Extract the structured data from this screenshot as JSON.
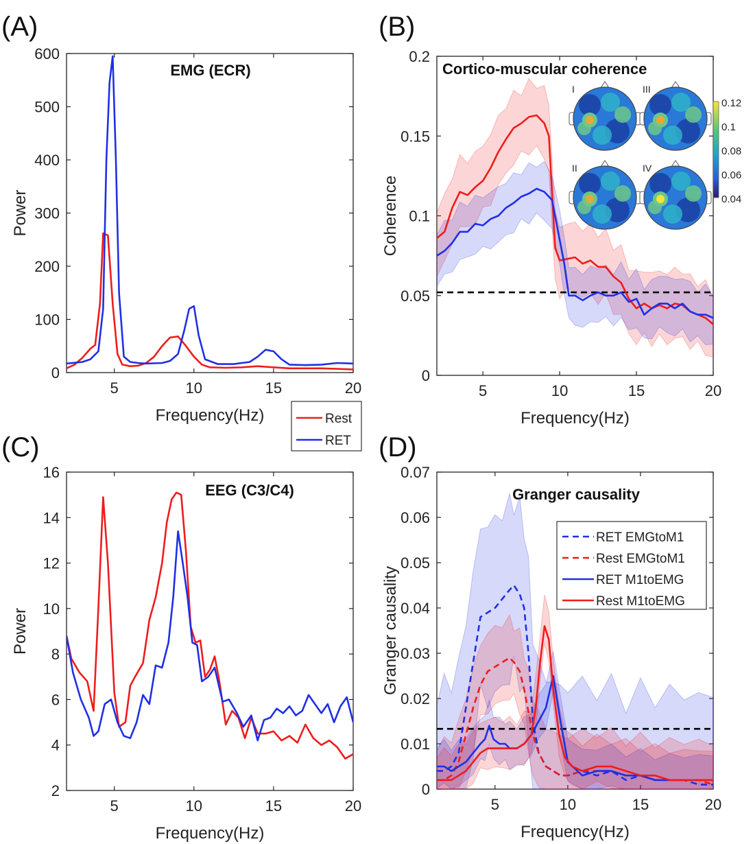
{
  "chart_data": [
    {
      "panel": "A",
      "panel_label": "(A)",
      "type": "line",
      "title": "EMG (ECR)",
      "xlabel": "Frequency(Hz)",
      "ylabel": "Power",
      "xlim": [
        2,
        20
      ],
      "ylim": [
        0,
        600
      ],
      "xticks": [
        5,
        10,
        15,
        20
      ],
      "yticks": [
        0,
        100,
        200,
        300,
        400,
        500,
        600
      ],
      "grid": false,
      "legend": {
        "placement": "below-right",
        "entries": [
          "Rest",
          "RET"
        ]
      },
      "series": [
        {
          "name": "Rest",
          "color": "#ee1c1c",
          "x": [
            2,
            2.5,
            3,
            3.5,
            3.8,
            4.1,
            4.3,
            4.6,
            4.9,
            5.2,
            5.5,
            6,
            6.5,
            7,
            7.5,
            8,
            8.5,
            9,
            9.5,
            10,
            10.5,
            11,
            12,
            13,
            14,
            15,
            16,
            17,
            18,
            19,
            20
          ],
          "y": [
            8,
            15,
            28,
            45,
            52,
            130,
            262,
            258,
            130,
            35,
            15,
            12,
            13,
            18,
            30,
            50,
            66,
            68,
            50,
            30,
            15,
            10,
            9,
            10,
            12,
            10,
            8,
            8,
            8,
            7,
            6
          ]
        },
        {
          "name": "RET",
          "color": "#1f2fe5",
          "x": [
            2,
            3,
            3.5,
            4,
            4.3,
            4.5,
            4.7,
            4.9,
            5.1,
            5.3,
            5.6,
            6,
            6.5,
            7,
            8,
            8.5,
            9,
            9.4,
            9.7,
            10,
            10.3,
            10.7,
            11.5,
            12.5,
            13.5,
            14,
            14.5,
            15,
            15.5,
            16,
            17,
            18,
            19,
            20
          ],
          "y": [
            17,
            20,
            25,
            40,
            120,
            400,
            545,
            595,
            400,
            150,
            30,
            20,
            18,
            17,
            18,
            22,
            35,
            80,
            120,
            125,
            70,
            25,
            16,
            16,
            20,
            30,
            43,
            40,
            25,
            15,
            14,
            15,
            18,
            17
          ]
        }
      ]
    },
    {
      "panel": "B",
      "panel_label": "(B)",
      "type": "line",
      "title": "Cortico-muscular coherence",
      "xlabel": "Frequency(Hz)",
      "ylabel": "Coherence",
      "xlim": [
        2,
        20
      ],
      "ylim": [
        0,
        0.2
      ],
      "xticks": [
        5,
        10,
        15,
        20
      ],
      "yticks": [
        0,
        0.05,
        0.1,
        0.15,
        0.2
      ],
      "threshold": 0.052,
      "grid": false,
      "series": [
        {
          "name": "Rest",
          "color": "#ee1c1c",
          "x": [
            2,
            2.5,
            3,
            3.5,
            4,
            4.5,
            5,
            5.5,
            6,
            6.5,
            7,
            7.5,
            8,
            8.5,
            9,
            9.3,
            9.7,
            10,
            10.5,
            11,
            11.5,
            12,
            12.5,
            13,
            13.5,
            14,
            14.5,
            15,
            15.5,
            16,
            16.5,
            17,
            17.5,
            18,
            18.5,
            19,
            19.5,
            20
          ],
          "y": [
            0.086,
            0.09,
            0.105,
            0.115,
            0.113,
            0.118,
            0.122,
            0.13,
            0.14,
            0.148,
            0.155,
            0.158,
            0.162,
            0.163,
            0.158,
            0.15,
            0.08,
            0.072,
            0.073,
            0.074,
            0.07,
            0.072,
            0.068,
            0.068,
            0.062,
            0.058,
            0.048,
            0.042,
            0.045,
            0.042,
            0.044,
            0.042,
            0.045,
            0.044,
            0.04,
            0.038,
            0.036,
            0.032
          ],
          "band": 0.02
        },
        {
          "name": "RET",
          "color": "#1f2fe5",
          "x": [
            2,
            2.5,
            3,
            3.5,
            4,
            4.5,
            5,
            5.5,
            6,
            6.5,
            7,
            7.5,
            8,
            8.5,
            9,
            9.5,
            10,
            10.3,
            10.6,
            11,
            11.5,
            12,
            12.5,
            13,
            13.5,
            14,
            14.5,
            15,
            15.5,
            16,
            16.5,
            17,
            17.5,
            18,
            18.5,
            19,
            19.5,
            20
          ],
          "y": [
            0.075,
            0.078,
            0.083,
            0.09,
            0.09,
            0.095,
            0.094,
            0.098,
            0.1,
            0.105,
            0.108,
            0.112,
            0.114,
            0.117,
            0.115,
            0.11,
            0.085,
            0.07,
            0.05,
            0.05,
            0.047,
            0.05,
            0.052,
            0.05,
            0.05,
            0.052,
            0.046,
            0.048,
            0.038,
            0.042,
            0.045,
            0.045,
            0.042,
            0.045,
            0.04,
            0.038,
            0.038,
            0.036
          ],
          "band": 0.016
        }
      ],
      "inset": {
        "maps": [
          "I",
          "III",
          "II",
          "IV"
        ],
        "colorbar_ticks": [
          "0.12",
          "0.1",
          "0.08",
          "0.06",
          "0.04"
        ]
      }
    },
    {
      "panel": "C",
      "panel_label": "(C)",
      "type": "line",
      "title": "EEG (C3/C4)",
      "xlabel": "Frequency(Hz)",
      "ylabel": "Power",
      "xlim": [
        2,
        20
      ],
      "ylim": [
        2,
        16
      ],
      "xticks": [
        5,
        10,
        15,
        20
      ],
      "yticks": [
        2,
        4,
        6,
        8,
        10,
        12,
        14,
        16
      ],
      "grid": false,
      "series": [
        {
          "name": "Rest",
          "color": "#ee1c1c",
          "x": [
            2,
            2.3,
            2.8,
            3.3,
            3.7,
            4.0,
            4.3,
            4.6,
            5.0,
            5.3,
            5.7,
            6.0,
            6.3,
            6.8,
            7.2,
            7.6,
            8.0,
            8.3,
            8.6,
            8.9,
            9.2,
            9.5,
            9.8,
            10.1,
            10.4,
            10.7,
            11.0,
            11.3,
            11.6,
            12.0,
            12.4,
            12.8,
            13.2,
            13.6,
            14.0,
            14.5,
            15.0,
            15.5,
            16.0,
            16.5,
            17.0,
            17.5,
            18.0,
            18.5,
            19.0,
            19.5,
            20.0
          ],
          "y": [
            8.8,
            7.8,
            7.2,
            6.8,
            5.5,
            10,
            14.9,
            12,
            6.3,
            4.8,
            5,
            6.6,
            7,
            7.6,
            9.5,
            10.5,
            12,
            13.8,
            14.8,
            15.1,
            15,
            12.5,
            9.2,
            8.5,
            8.6,
            7,
            7.3,
            7.9,
            6.8,
            4.9,
            5.5,
            5.2,
            4.3,
            5.2,
            4.5,
            4.5,
            4.6,
            4.2,
            4.4,
            4.1,
            4.9,
            4.3,
            4,
            4.2,
            3.9,
            3.4,
            3.6
          ]
        },
        {
          "name": "RET",
          "color": "#1f2fe5",
          "x": [
            2,
            2.4,
            2.9,
            3.4,
            3.7,
            4.0,
            4.4,
            4.8,
            5.2,
            5.6,
            6.0,
            6.4,
            6.8,
            7.2,
            7.6,
            8.0,
            8.4,
            8.7,
            9.0,
            9.3,
            9.6,
            9.9,
            10.2,
            10.5,
            10.9,
            11.3,
            11.8,
            12.2,
            12.7,
            13.1,
            13.6,
            14.0,
            14.4,
            14.8,
            15.2,
            15.6,
            16.0,
            16.4,
            16.8,
            17.2,
            17.6,
            18.0,
            18.4,
            18.8,
            19.2,
            19.6,
            20.0
          ],
          "y": [
            8.8,
            7.2,
            6,
            5.2,
            4.4,
            4.6,
            5.8,
            6,
            5,
            4.4,
            4.3,
            5,
            6.2,
            5.8,
            7.5,
            7.4,
            8.5,
            10.5,
            13.4,
            12,
            10.5,
            8.5,
            8.4,
            6.8,
            7,
            7.4,
            5.9,
            6,
            5.4,
            4.8,
            5.3,
            4.2,
            5.1,
            5.2,
            5.6,
            5.4,
            5.7,
            5.3,
            5.5,
            6.2,
            5.8,
            5.4,
            5.8,
            5.0,
            5.7,
            6.1,
            5.0
          ]
        }
      ]
    },
    {
      "panel": "D",
      "panel_label": "(D)",
      "type": "line",
      "title": "Granger causality",
      "xlabel": "Frequency(Hz)",
      "ylabel": "Granger causality",
      "xlim": [
        1,
        20
      ],
      "ylim": [
        0,
        0.07
      ],
      "xticks": [
        5,
        10,
        15,
        20
      ],
      "yticks": [
        0,
        0.01,
        0.02,
        0.03,
        0.04,
        0.05,
        0.06,
        0.07
      ],
      "threshold": 0.0133,
      "grid": false,
      "legend": {
        "placement": "top-right",
        "entries": [
          "RET EMGtoM1",
          "Rest EMGtoM1",
          "RET M1toEMG",
          "Rest M1toEMG"
        ]
      },
      "series": [
        {
          "name": "RET EMGtoM1",
          "color": "#1f2fe5",
          "dash": true,
          "x": [
            1,
            1.5,
            2,
            2.5,
            3,
            3.5,
            4,
            4.5,
            5,
            5.5,
            6,
            6.3,
            6.7,
            7,
            7.3,
            7.6,
            8,
            8.5,
            9,
            9.5,
            10,
            11,
            12,
            13,
            14,
            15,
            16,
            17,
            18,
            19,
            20
          ],
          "y": [
            0.004,
            0.004,
            0.005,
            0.008,
            0.018,
            0.028,
            0.038,
            0.039,
            0.04,
            0.042,
            0.044,
            0.045,
            0.043,
            0.04,
            0.03,
            0.015,
            0.008,
            0.005,
            0.004,
            0.003,
            0.003,
            0.004,
            0.003,
            0.004,
            0.002,
            0.003,
            0.002,
            0.002,
            0.002,
            0.001,
            0.001
          ],
          "band_up": 0.018,
          "band_lo": 0.018
        },
        {
          "name": "Rest EMGtoM1",
          "color": "#ee1c1c",
          "dash": true,
          "x": [
            1,
            1.5,
            2,
            2.5,
            3,
            3.5,
            4,
            4.5,
            5,
            5.5,
            6,
            6.3,
            6.7,
            7,
            7.3,
            7.6,
            8,
            8.5,
            9,
            9.5,
            10,
            11,
            12,
            13,
            14,
            15,
            16,
            17,
            18,
            19,
            20
          ],
          "y": [
            0.002,
            0.002,
            0.003,
            0.006,
            0.012,
            0.018,
            0.023,
            0.026,
            0.027,
            0.028,
            0.029,
            0.028,
            0.026,
            0.022,
            0.017,
            0.012,
            0.008,
            0.005,
            0.004,
            0.003,
            0.003,
            0.004,
            0.004,
            0.004,
            0.003,
            0.003,
            0.002,
            0.002,
            0.002,
            0.002,
            0.001
          ],
          "band_up": 0.008,
          "band_lo": 0.008
        },
        {
          "name": "RET M1toEMG",
          "color": "#1f2fe5",
          "dash": false,
          "x": [
            1,
            1.5,
            2,
            2.5,
            3,
            3.5,
            4,
            4.3,
            4.6,
            4.9,
            5.3,
            5.7,
            6,
            6.5,
            7,
            7.5,
            8,
            8.5,
            9,
            9.5,
            10,
            11,
            12,
            13,
            14,
            15,
            16,
            17,
            18,
            19,
            20
          ],
          "y": [
            0.005,
            0.005,
            0.004,
            0.005,
            0.006,
            0.008,
            0.01,
            0.011,
            0.014,
            0.011,
            0.01,
            0.01,
            0.009,
            0.009,
            0.01,
            0.012,
            0.015,
            0.018,
            0.025,
            0.015,
            0.006,
            0.003,
            0.004,
            0.004,
            0.003,
            0.003,
            0.002,
            0.002,
            0.002,
            0.002,
            0.002
          ],
          "band_up": 0.005,
          "band_lo": 0.004
        },
        {
          "name": "Rest M1toEMG",
          "color": "#ee1c1c",
          "dash": false,
          "x": [
            1,
            1.5,
            2,
            2.5,
            3,
            3.5,
            4,
            4.5,
            5,
            5.5,
            6,
            6.5,
            7,
            7.5,
            7.8,
            8.1,
            8.4,
            8.7,
            9,
            9.4,
            9.8,
            10.3,
            11,
            12,
            13,
            14,
            15,
            16,
            17,
            18,
            19,
            20
          ],
          "y": [
            0.002,
            0.002,
            0.002,
            0.003,
            0.004,
            0.006,
            0.008,
            0.009,
            0.009,
            0.009,
            0.009,
            0.009,
            0.01,
            0.012,
            0.018,
            0.028,
            0.036,
            0.033,
            0.022,
            0.012,
            0.007,
            0.005,
            0.004,
            0.005,
            0.005,
            0.004,
            0.003,
            0.003,
            0.002,
            0.002,
            0.002,
            0.002
          ],
          "band_up": 0.006,
          "band_lo": 0.004
        }
      ]
    }
  ]
}
